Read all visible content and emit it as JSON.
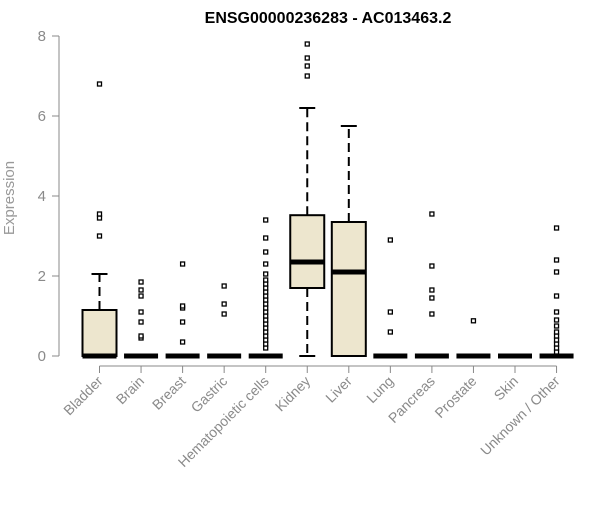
{
  "chart_data": {
    "type": "box",
    "title": "ENSG00000236283 - AC013463.2",
    "xlabel": "",
    "ylabel": "Expression",
    "ylim": [
      0,
      8
    ],
    "yticks": [
      0,
      2,
      4,
      6,
      8
    ],
    "grid": false,
    "colors": {
      "box_fill": "#ede6ce",
      "box_stroke": "#000000",
      "axis": "#888888",
      "tick_text": "#8a8a8a"
    },
    "categories": [
      "Bladder",
      "Brain",
      "Breast",
      "Gastric",
      "Hematopoietic cells",
      "Kidney",
      "Liver",
      "Lung",
      "Pancreas",
      "Prostate",
      "Skin",
      "Unknown / Other"
    ],
    "boxes": [
      {
        "q1": 0,
        "median": 0,
        "q3": 1.15,
        "whisker_low": 0,
        "whisker_high": 2.05,
        "outliers": [
          3.0,
          3.45,
          3.55,
          6.8
        ]
      },
      {
        "q1": 0,
        "median": 0,
        "q3": 0,
        "whisker_low": 0,
        "whisker_high": 0,
        "outliers": [
          0.45,
          0.5,
          0.85,
          1.1,
          1.5,
          1.65,
          1.85
        ]
      },
      {
        "q1": 0,
        "median": 0,
        "q3": 0,
        "whisker_low": 0,
        "whisker_high": 0,
        "outliers": [
          0.35,
          0.85,
          1.2,
          1.25,
          2.3
        ]
      },
      {
        "q1": 0,
        "median": 0,
        "q3": 0,
        "whisker_low": 0,
        "whisker_high": 0,
        "outliers": [
          1.05,
          1.3,
          1.75
        ]
      },
      {
        "q1": 0,
        "median": 0,
        "q3": 0,
        "whisker_low": 0,
        "whisker_high": 0,
        "outliers": [
          0.2,
          0.3,
          0.4,
          0.5,
          0.6,
          0.7,
          0.8,
          0.9,
          1.0,
          1.1,
          1.2,
          1.3,
          1.4,
          1.5,
          1.6,
          1.7,
          1.8,
          1.9,
          2.05,
          2.3,
          2.6,
          2.95,
          3.4
        ]
      },
      {
        "q1": 1.7,
        "median": 2.35,
        "q3": 3.52,
        "whisker_low": 0,
        "whisker_high": 6.2,
        "outliers": [
          7.0,
          7.25,
          7.45,
          7.8
        ]
      },
      {
        "q1": 0,
        "median": 2.1,
        "q3": 3.35,
        "whisker_low": 0,
        "whisker_high": 5.75,
        "outliers": []
      },
      {
        "q1": 0,
        "median": 0,
        "q3": 0,
        "whisker_low": 0,
        "whisker_high": 0,
        "outliers": [
          0.6,
          1.1,
          2.9
        ]
      },
      {
        "q1": 0,
        "median": 0,
        "q3": 0,
        "whisker_low": 0,
        "whisker_high": 0,
        "outliers": [
          1.05,
          1.45,
          1.65,
          2.25,
          3.55
        ]
      },
      {
        "q1": 0,
        "median": 0,
        "q3": 0,
        "whisker_low": 0,
        "whisker_high": 0,
        "outliers": [
          0.88
        ]
      },
      {
        "q1": 0,
        "median": 0,
        "q3": 0,
        "whisker_low": 0,
        "whisker_high": 0,
        "outliers": []
      },
      {
        "q1": 0,
        "median": 0,
        "q3": 0,
        "whisker_low": 0,
        "whisker_high": 0,
        "outliers": [
          0.1,
          0.2,
          0.3,
          0.4,
          0.5,
          0.6,
          0.75,
          0.9,
          1.1,
          1.5,
          2.1,
          2.4,
          3.2
        ]
      }
    ]
  }
}
